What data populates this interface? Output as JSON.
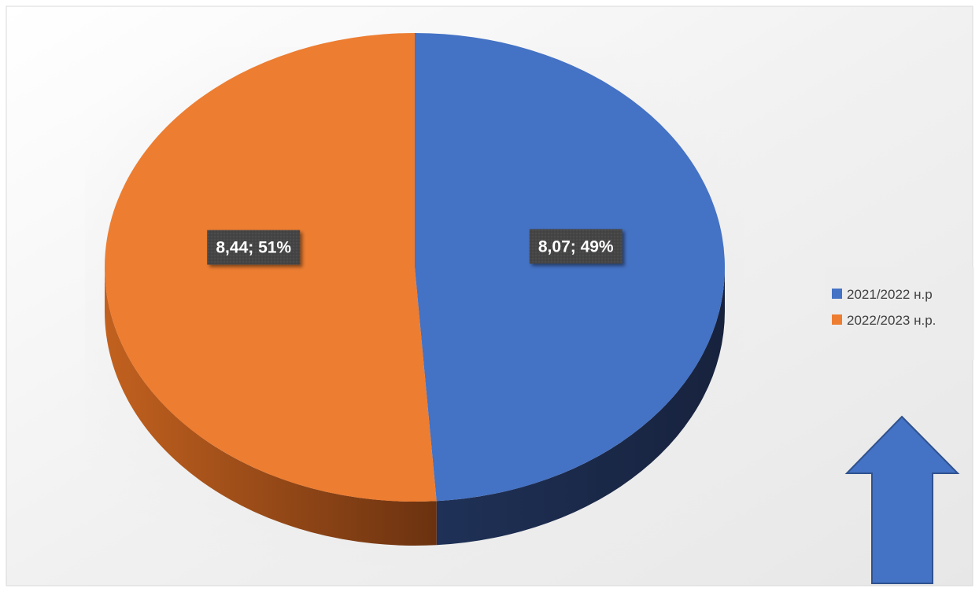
{
  "chart_data": {
    "type": "pie",
    "style": "3d",
    "slices": [
      {
        "label": "2021/2022 н.р",
        "value": 8.07,
        "percent": 49,
        "data_label": "8,07; 49%",
        "color": "#4472C4",
        "side_color": "#1B2B4E"
      },
      {
        "label": "2022/2023 н.р.",
        "value": 8.44,
        "percent": 51,
        "data_label": "8,44; 51%",
        "color": "#ED7D31",
        "side_color": "#7A3A11"
      }
    ],
    "legend": {
      "position": "right",
      "items": [
        {
          "label": "2021/2022 н.р",
          "color": "#4472C4"
        },
        {
          "label": "2022/2023 н.р.",
          "color": "#ED7D31"
        }
      ]
    }
  },
  "decorations": {
    "arrow": {
      "direction": "up",
      "icon": "arrow-up-icon",
      "color": "#4472C4",
      "stroke": "#2F528F"
    }
  }
}
